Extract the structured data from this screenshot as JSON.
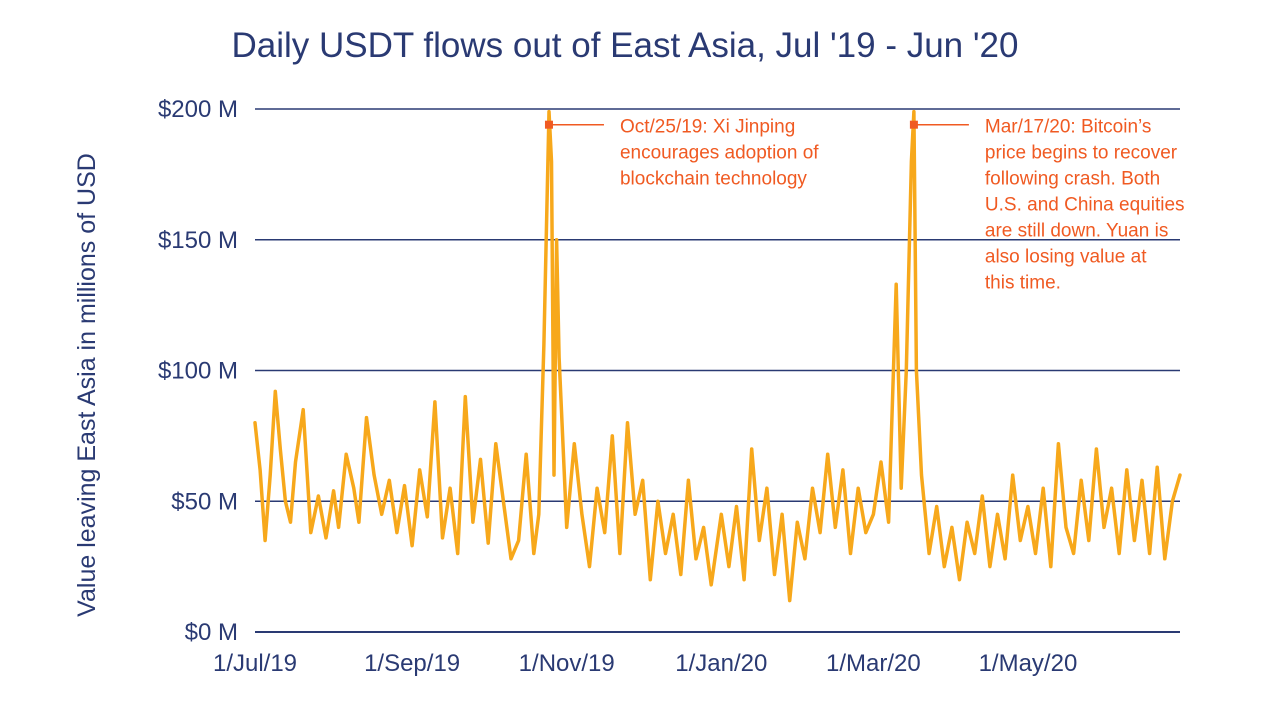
{
  "chart_data": {
    "type": "line",
    "title": "Daily USDT flows out of East Asia, Jul '19 - Jun '20",
    "ylabel": "Value leaving East Asia in millions of USD",
    "xlabel": "",
    "x_start": "2019-07-01",
    "x_end": "2020-06-30",
    "ylim": [
      0,
      200
    ],
    "y_unit": "millions of USD",
    "y_ticks": [
      {
        "value": 0,
        "label": "$0 M"
      },
      {
        "value": 50,
        "label": "$50 M"
      },
      {
        "value": 100,
        "label": "$100 M"
      },
      {
        "value": 150,
        "label": "$150 M"
      },
      {
        "value": 200,
        "label": "$200 M"
      }
    ],
    "x_ticks": [
      {
        "date": "2019-07-01",
        "label": "1/Jul/19"
      },
      {
        "date": "2019-09-01",
        "label": "1/Sep/19"
      },
      {
        "date": "2019-11-01",
        "label": "1/Nov/19"
      },
      {
        "date": "2020-01-01",
        "label": "1/Jan/20"
      },
      {
        "date": "2020-03-01",
        "label": "1/Mar/20"
      },
      {
        "date": "2020-05-01",
        "label": "1/May/20"
      }
    ],
    "grid": "horizontal",
    "line_color": "#f7a81b",
    "grid_color": "#2a3a73",
    "annotation_color": "#f05a22",
    "annotations": [
      {
        "date": "2019-10-25",
        "value": 194,
        "lines": [
          "Oct/25/19: Xi Jinping",
          "encourages adoption of",
          "blockchain technology"
        ]
      },
      {
        "date": "2020-03-17",
        "value": 194,
        "lines": [
          "Mar/17/20: Bitcoin’s",
          "price begins to recover",
          "following crash. Both",
          "U.S. and China equities",
          "are still down. Yuan is",
          "also losing value at",
          "this time."
        ]
      }
    ],
    "series": [
      {
        "values": [
          {
            "x": "2019-07-01",
            "y": 80
          },
          {
            "x": "2019-07-03",
            "y": 62
          },
          {
            "x": "2019-07-05",
            "y": 35
          },
          {
            "x": "2019-07-07",
            "y": 60
          },
          {
            "x": "2019-07-09",
            "y": 92
          },
          {
            "x": "2019-07-11",
            "y": 70
          },
          {
            "x": "2019-07-13",
            "y": 50
          },
          {
            "x": "2019-07-15",
            "y": 42
          },
          {
            "x": "2019-07-17",
            "y": 65
          },
          {
            "x": "2019-07-20",
            "y": 85
          },
          {
            "x": "2019-07-23",
            "y": 38
          },
          {
            "x": "2019-07-26",
            "y": 52
          },
          {
            "x": "2019-07-29",
            "y": 36
          },
          {
            "x": "2019-08-01",
            "y": 54
          },
          {
            "x": "2019-08-03",
            "y": 40
          },
          {
            "x": "2019-08-06",
            "y": 68
          },
          {
            "x": "2019-08-09",
            "y": 55
          },
          {
            "x": "2019-08-11",
            "y": 42
          },
          {
            "x": "2019-08-14",
            "y": 82
          },
          {
            "x": "2019-08-17",
            "y": 60
          },
          {
            "x": "2019-08-20",
            "y": 45
          },
          {
            "x": "2019-08-23",
            "y": 58
          },
          {
            "x": "2019-08-26",
            "y": 38
          },
          {
            "x": "2019-08-29",
            "y": 56
          },
          {
            "x": "2019-09-01",
            "y": 33
          },
          {
            "x": "2019-09-04",
            "y": 62
          },
          {
            "x": "2019-09-07",
            "y": 44
          },
          {
            "x": "2019-09-10",
            "y": 88
          },
          {
            "x": "2019-09-13",
            "y": 36
          },
          {
            "x": "2019-09-16",
            "y": 55
          },
          {
            "x": "2019-09-19",
            "y": 30
          },
          {
            "x": "2019-09-22",
            "y": 90
          },
          {
            "x": "2019-09-25",
            "y": 42
          },
          {
            "x": "2019-09-28",
            "y": 66
          },
          {
            "x": "2019-10-01",
            "y": 34
          },
          {
            "x": "2019-10-04",
            "y": 72
          },
          {
            "x": "2019-10-07",
            "y": 50
          },
          {
            "x": "2019-10-10",
            "y": 28
          },
          {
            "x": "2019-10-13",
            "y": 35
          },
          {
            "x": "2019-10-16",
            "y": 68
          },
          {
            "x": "2019-10-19",
            "y": 30
          },
          {
            "x": "2019-10-21",
            "y": 45
          },
          {
            "x": "2019-10-23",
            "y": 110
          },
          {
            "x": "2019-10-25",
            "y": 199
          },
          {
            "x": "2019-10-26",
            "y": 180
          },
          {
            "x": "2019-10-27",
            "y": 60
          },
          {
            "x": "2019-10-28",
            "y": 150
          },
          {
            "x": "2019-10-29",
            "y": 105
          },
          {
            "x": "2019-11-01",
            "y": 40
          },
          {
            "x": "2019-11-04",
            "y": 72
          },
          {
            "x": "2019-11-07",
            "y": 45
          },
          {
            "x": "2019-11-10",
            "y": 25
          },
          {
            "x": "2019-11-13",
            "y": 55
          },
          {
            "x": "2019-11-16",
            "y": 38
          },
          {
            "x": "2019-11-19",
            "y": 75
          },
          {
            "x": "2019-11-22",
            "y": 30
          },
          {
            "x": "2019-11-25",
            "y": 80
          },
          {
            "x": "2019-11-28",
            "y": 45
          },
          {
            "x": "2019-12-01",
            "y": 58
          },
          {
            "x": "2019-12-04",
            "y": 20
          },
          {
            "x": "2019-12-07",
            "y": 50
          },
          {
            "x": "2019-12-10",
            "y": 30
          },
          {
            "x": "2019-12-13",
            "y": 45
          },
          {
            "x": "2019-12-16",
            "y": 22
          },
          {
            "x": "2019-12-19",
            "y": 58
          },
          {
            "x": "2019-12-22",
            "y": 28
          },
          {
            "x": "2019-12-25",
            "y": 40
          },
          {
            "x": "2019-12-28",
            "y": 18
          },
          {
            "x": "2020-01-01",
            "y": 45
          },
          {
            "x": "2020-01-04",
            "y": 25
          },
          {
            "x": "2020-01-07",
            "y": 48
          },
          {
            "x": "2020-01-10",
            "y": 20
          },
          {
            "x": "2020-01-13",
            "y": 70
          },
          {
            "x": "2020-01-16",
            "y": 35
          },
          {
            "x": "2020-01-19",
            "y": 55
          },
          {
            "x": "2020-01-22",
            "y": 22
          },
          {
            "x": "2020-01-25",
            "y": 45
          },
          {
            "x": "2020-01-28",
            "y": 12
          },
          {
            "x": "2020-01-31",
            "y": 42
          },
          {
            "x": "2020-02-03",
            "y": 28
          },
          {
            "x": "2020-02-06",
            "y": 55
          },
          {
            "x": "2020-02-09",
            "y": 38
          },
          {
            "x": "2020-02-12",
            "y": 68
          },
          {
            "x": "2020-02-15",
            "y": 40
          },
          {
            "x": "2020-02-18",
            "y": 62
          },
          {
            "x": "2020-02-21",
            "y": 30
          },
          {
            "x": "2020-02-24",
            "y": 55
          },
          {
            "x": "2020-02-27",
            "y": 38
          },
          {
            "x": "2020-03-01",
            "y": 45
          },
          {
            "x": "2020-03-04",
            "y": 65
          },
          {
            "x": "2020-03-07",
            "y": 42
          },
          {
            "x": "2020-03-10",
            "y": 133
          },
          {
            "x": "2020-03-12",
            "y": 55
          },
          {
            "x": "2020-03-14",
            "y": 100
          },
          {
            "x": "2020-03-16",
            "y": 180
          },
          {
            "x": "2020-03-17",
            "y": 199
          },
          {
            "x": "2020-03-18",
            "y": 100
          },
          {
            "x": "2020-03-20",
            "y": 60
          },
          {
            "x": "2020-03-23",
            "y": 30
          },
          {
            "x": "2020-03-26",
            "y": 48
          },
          {
            "x": "2020-03-29",
            "y": 25
          },
          {
            "x": "2020-04-01",
            "y": 40
          },
          {
            "x": "2020-04-04",
            "y": 20
          },
          {
            "x": "2020-04-07",
            "y": 42
          },
          {
            "x": "2020-04-10",
            "y": 30
          },
          {
            "x": "2020-04-13",
            "y": 52
          },
          {
            "x": "2020-04-16",
            "y": 25
          },
          {
            "x": "2020-04-19",
            "y": 45
          },
          {
            "x": "2020-04-22",
            "y": 28
          },
          {
            "x": "2020-04-25",
            "y": 60
          },
          {
            "x": "2020-04-28",
            "y": 35
          },
          {
            "x": "2020-05-01",
            "y": 48
          },
          {
            "x": "2020-05-04",
            "y": 30
          },
          {
            "x": "2020-05-07",
            "y": 55
          },
          {
            "x": "2020-05-10",
            "y": 25
          },
          {
            "x": "2020-05-13",
            "y": 72
          },
          {
            "x": "2020-05-16",
            "y": 40
          },
          {
            "x": "2020-05-19",
            "y": 30
          },
          {
            "x": "2020-05-22",
            "y": 58
          },
          {
            "x": "2020-05-25",
            "y": 35
          },
          {
            "x": "2020-05-28",
            "y": 70
          },
          {
            "x": "2020-05-31",
            "y": 40
          },
          {
            "x": "2020-06-03",
            "y": 55
          },
          {
            "x": "2020-06-06",
            "y": 30
          },
          {
            "x": "2020-06-09",
            "y": 62
          },
          {
            "x": "2020-06-12",
            "y": 35
          },
          {
            "x": "2020-06-15",
            "y": 58
          },
          {
            "x": "2020-06-18",
            "y": 30
          },
          {
            "x": "2020-06-21",
            "y": 63
          },
          {
            "x": "2020-06-24",
            "y": 28
          },
          {
            "x": "2020-06-27",
            "y": 50
          },
          {
            "x": "2020-06-30",
            "y": 60
          }
        ]
      }
    ]
  }
}
